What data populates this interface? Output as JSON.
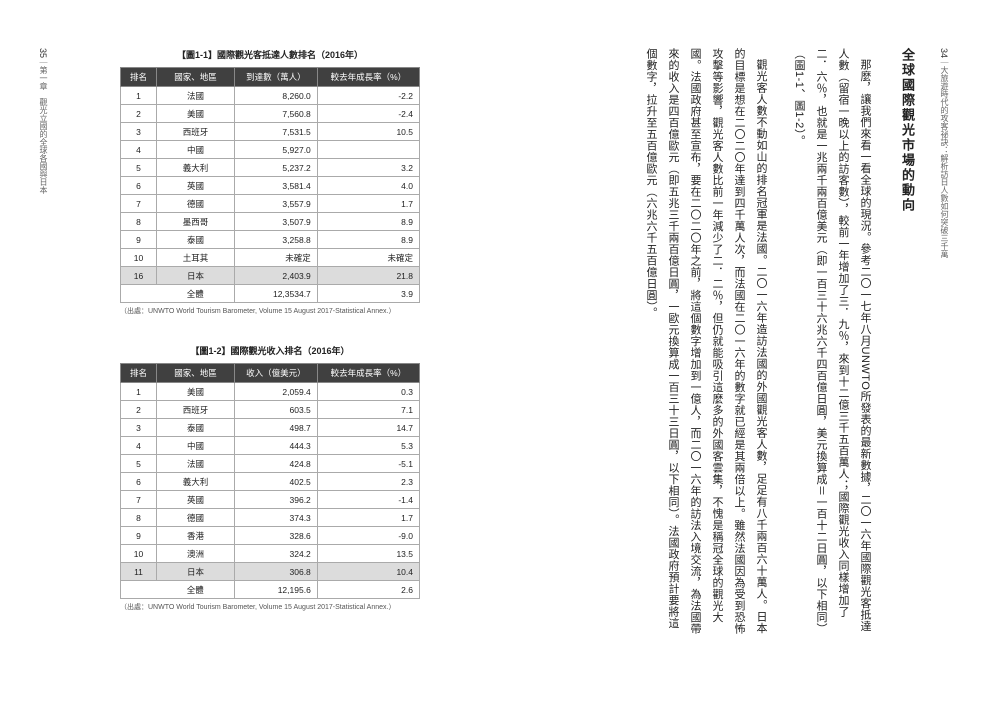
{
  "right_page": {
    "header_page_num": "34",
    "header_running": "｜大旅遊時代的攻客祕訣：解析訪日人數如何突破三千萬",
    "section_title": "全球國際觀光市場的動向",
    "paragraphs": [
      "那麼，讓我們來看一看全球的現況。參考二〇一七年八月UNWTO所發表的最新數據，二〇一六年國際觀光客抵達人數（留宿一晚以上的訪客數），較前一年增加了三．九％，來到十二億三千五百萬人；國際觀光收入同樣增加了二．六％，也就是一兆兩千兩百億美元（即一百三十六兆六千四百億日圓，美元換算成＝一百十二日圓，以下相同）（圖1-1、圖1-2）。",
      "觀光客人數不動如山的排名冠軍是法國。二〇一六年造訪法國的外國觀光客人數，足足有八千兩百六十萬人。日本的目標是想在二〇二〇年達到四千萬人次，而法國在二〇一六年的數字就已經是其兩倍以上。雖然法國因為受到恐怖攻擊等影響，觀光客人數比前一年減少了二．二％，但仍就能吸引這麼多的外國客雲集，不愧是稱冠全球的觀光大國。法國政府甚至宣布，要在二〇二〇年之前，將這個數字增加到一億人，而二〇一六年的訪法入境交流，為法國帶來的收入是四百億歐元（即五兆三千兩百億日圓，一歐元換算成一百三十三日圓，以下相同）。法國政府預計要將這個數字，拉升至五百億歐元（六兆六千五百億日圓）。"
    ]
  },
  "left_page": {
    "footer_page_num": "35",
    "footer_running": "｜第一章　觀光立國的全球各國與日本",
    "table1": {
      "title": "【圖1-1】國際觀光客抵達人數排名（2016年）",
      "headers": [
        "排名",
        "國家、地區",
        "到達數（萬人）",
        "較去年成長率（%）"
      ],
      "rows": [
        {
          "rank": "1",
          "country": "法國",
          "value": "8,260.0",
          "growth": "-2.2",
          "hl": false
        },
        {
          "rank": "2",
          "country": "美國",
          "value": "7,560.8",
          "growth": "-2.4",
          "hl": false
        },
        {
          "rank": "3",
          "country": "西班牙",
          "value": "7,531.5",
          "growth": "10.5",
          "hl": false
        },
        {
          "rank": "4",
          "country": "中國",
          "value": "5,927.0",
          "growth": "",
          "hl": false
        },
        {
          "rank": "5",
          "country": "義大利",
          "value": "5,237.2",
          "growth": "3.2",
          "hl": false
        },
        {
          "rank": "6",
          "country": "英國",
          "value": "3,581.4",
          "growth": "4.0",
          "hl": false
        },
        {
          "rank": "7",
          "country": "德國",
          "value": "3,557.9",
          "growth": "1.7",
          "hl": false
        },
        {
          "rank": "8",
          "country": "墨西哥",
          "value": "3,507.9",
          "growth": "8.9",
          "hl": false
        },
        {
          "rank": "9",
          "country": "泰國",
          "value": "3,258.8",
          "growth": "8.9",
          "hl": false
        },
        {
          "rank": "10",
          "country": "土耳其",
          "value": "未確定",
          "growth": "未確定",
          "hl": false
        },
        {
          "rank": "16",
          "country": "日本",
          "value": "2,403.9",
          "growth": "21.8",
          "hl": true
        }
      ],
      "total_label": "全體",
      "total_value": "12,3534.7",
      "total_growth": "3.9",
      "source": "（出處：UNWTO World Tourism Barometer, Volume 15 August 2017-Statistical Annex.）"
    },
    "table2": {
      "title": "【圖1-2】國際觀光收入排名（2016年）",
      "headers": [
        "排名",
        "國家、地區",
        "收入（億美元）",
        "較去年成長率（%）"
      ],
      "rows": [
        {
          "rank": "1",
          "country": "美國",
          "value": "2,059.4",
          "growth": "0.3",
          "hl": false
        },
        {
          "rank": "2",
          "country": "西班牙",
          "value": "603.5",
          "growth": "7.1",
          "hl": false
        },
        {
          "rank": "3",
          "country": "泰國",
          "value": "498.7",
          "growth": "14.7",
          "hl": false
        },
        {
          "rank": "4",
          "country": "中國",
          "value": "444.3",
          "growth": "5.3",
          "hl": false
        },
        {
          "rank": "5",
          "country": "法國",
          "value": "424.8",
          "growth": "-5.1",
          "hl": false
        },
        {
          "rank": "6",
          "country": "義大利",
          "value": "402.5",
          "growth": "2.3",
          "hl": false
        },
        {
          "rank": "7",
          "country": "英國",
          "value": "396.2",
          "growth": "-1.4",
          "hl": false
        },
        {
          "rank": "8",
          "country": "德國",
          "value": "374.3",
          "growth": "1.7",
          "hl": false
        },
        {
          "rank": "9",
          "country": "香港",
          "value": "328.6",
          "growth": "-9.0",
          "hl": false
        },
        {
          "rank": "10",
          "country": "澳洲",
          "value": "324.2",
          "growth": "13.5",
          "hl": false
        },
        {
          "rank": "11",
          "country": "日本",
          "value": "306.8",
          "growth": "10.4",
          "hl": true
        }
      ],
      "total_label": "全體",
      "total_value": "12,195.6",
      "total_growth": "2.6",
      "source": "（出處：UNWTO World Tourism Barometer, Volume 15 August 2017-Statistical Annex.）"
    }
  }
}
